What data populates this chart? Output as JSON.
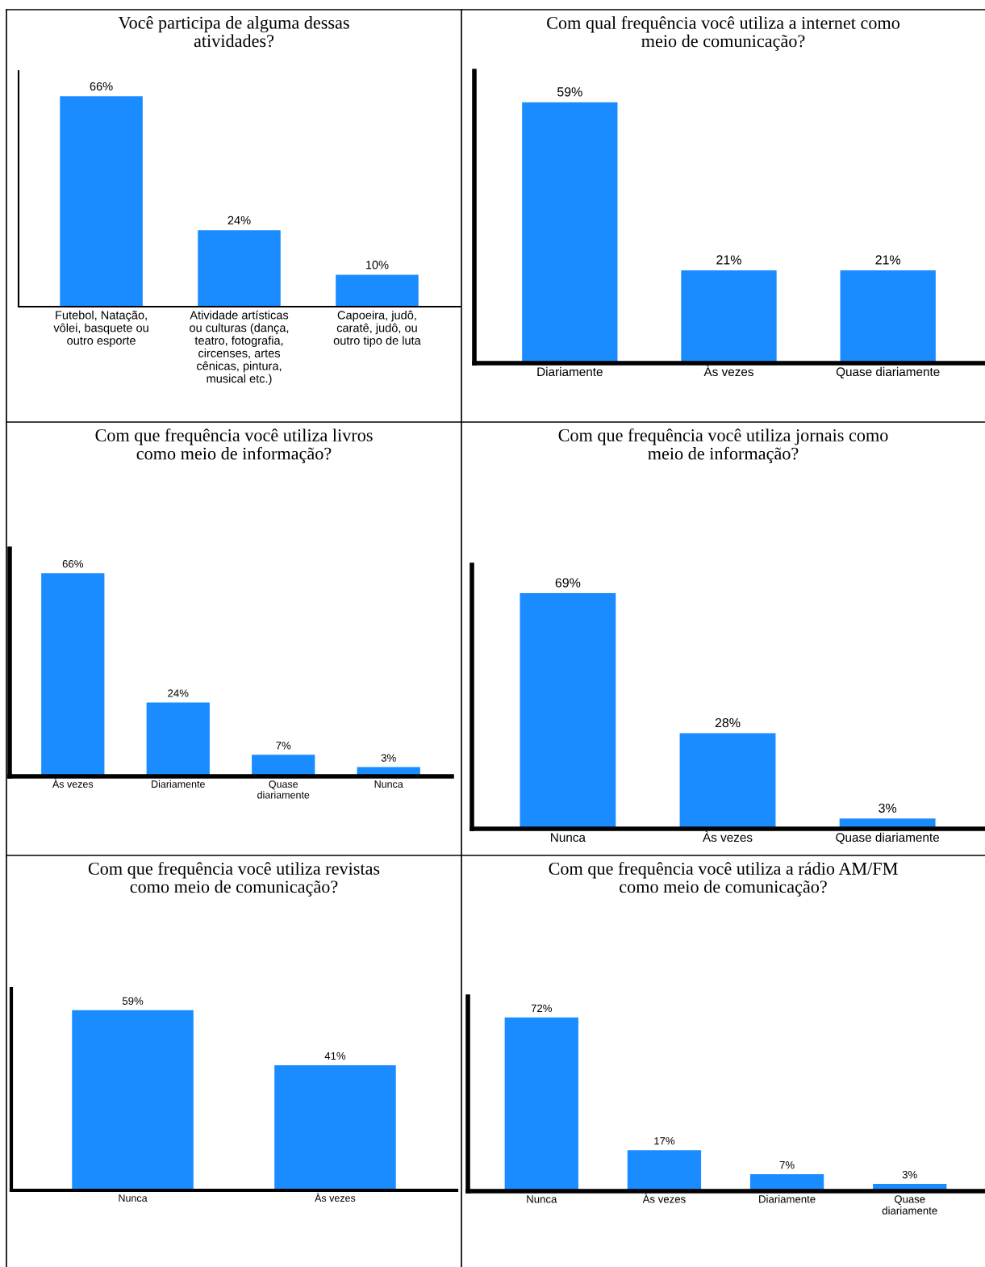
{
  "chart_data": [
    {
      "type": "bar",
      "title": "Você participa de alguma dessas\natividades?",
      "categories": [
        "Futebol, Natação,\nvôlei, basquete ou\noutro esporte",
        "Atividade artísticas\nou culturas (dança,\nteatro, fotografia,\ncircenses, artes\ncênicas, pintura,\nmusical etc.)",
        "Capoeira, judô,\ncaratê, judô, ou\noutro tipo de luta"
      ],
      "values": [
        66,
        24,
        10
      ],
      "color": "#1a8cff",
      "value_labels": [
        "66%",
        "24%",
        "10%"
      ],
      "grid": false,
      "legend": false
    },
    {
      "type": "bar",
      "title": "Com qual frequência você utiliza a internet como\nmeio de comunicação?",
      "categories": [
        "Diariamente",
        "Às vezes",
        "Quase diariamente"
      ],
      "values": [
        59,
        21,
        21
      ],
      "color": "#1a8cff",
      "value_labels": [
        "59%",
        "21%",
        "21%"
      ],
      "grid": false,
      "legend": false
    },
    {
      "type": "bar",
      "title": "Com que frequência você utiliza livros\ncomo meio de informação?",
      "categories": [
        "Às vezes",
        "Diariamente",
        "Quase\ndiariamente",
        "Nunca"
      ],
      "values": [
        66,
        24,
        7,
        3
      ],
      "color": "#1a8cff",
      "value_labels": [
        "66%",
        "24%",
        "7%",
        "3%"
      ],
      "grid": false,
      "legend": false
    },
    {
      "type": "bar",
      "title": "Com que frequência você utiliza jornais como\nmeio de informação?",
      "categories": [
        "Nunca",
        "Às vezes",
        "Quase diariamente"
      ],
      "values": [
        69,
        28,
        3
      ],
      "color": "#1a8cff",
      "value_labels": [
        "69%",
        "28%",
        "3%"
      ],
      "grid": false,
      "legend": false
    },
    {
      "type": "bar",
      "title": "Com que frequência você utiliza revistas\ncomo meio de comunicação?",
      "categories": [
        "Nunca",
        "Às vezes"
      ],
      "values": [
        59,
        41
      ],
      "color": "#1a8cff",
      "value_labels": [
        "59%",
        "41%"
      ],
      "grid": false,
      "legend": false
    },
    {
      "type": "bar",
      "title": "Com que frequência você utiliza a rádio AM/FM\ncomo meio de comunicação?",
      "categories": [
        "Nunca",
        "Às vezes",
        "Diariamente",
        "Quase\ndiariamente"
      ],
      "values": [
        72,
        17,
        7,
        3
      ],
      "color": "#1a8cff",
      "value_labels": [
        "72%",
        "17%",
        "7%",
        "3%"
      ],
      "grid": false,
      "legend": false
    }
  ]
}
